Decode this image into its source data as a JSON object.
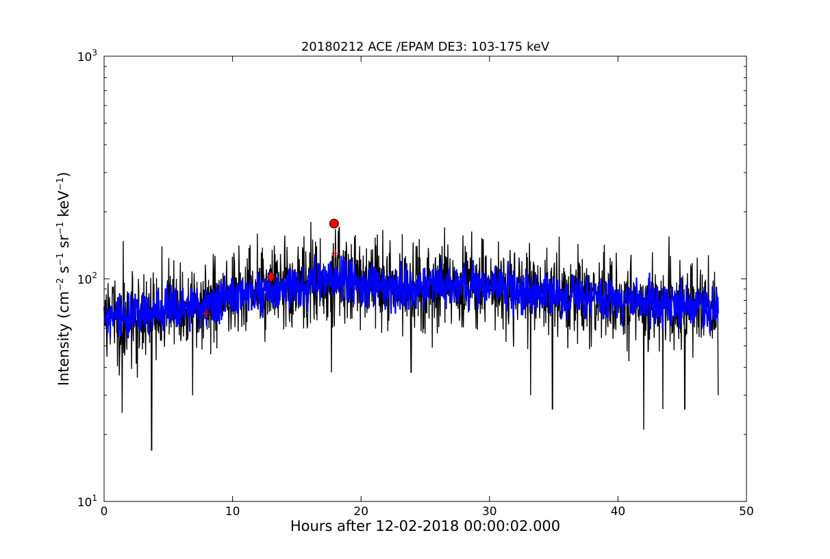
{
  "chart_data": {
    "type": "line",
    "title": "20180212 ACE /EPAM DE3: 103-175 keV",
    "xlabel": "Hours after 12-02-2018 00:00:02.000",
    "ylabel": {
      "prefix": "Intensity (cm",
      "exp1": "−2",
      "s": " s",
      "exp2": "−1",
      "sr": " sr",
      "exp3": "−1",
      "kev": " keV",
      "exp4": "−1",
      "suffix": ")"
    },
    "xlim": [
      0,
      50
    ],
    "ylim": [
      10,
      1000
    ],
    "yscale": "log",
    "grid": false,
    "x_ticks": [
      0,
      10,
      20,
      30,
      40,
      50
    ],
    "x_tick_labels": [
      "0",
      "10",
      "20",
      "30",
      "40",
      "50"
    ],
    "y_ticks": [
      10,
      100,
      1000
    ],
    "y_tick_label": {
      "base": "10",
      "exponents": [
        "1",
        "2",
        "3"
      ]
    },
    "sampling": {
      "x_start": 0.0,
      "x_end": 47.8,
      "points": 1700
    },
    "series": [
      {
        "color": "#000000",
        "style": "noisy-line",
        "envelope_x": [
          0,
          2,
          4,
          6,
          8,
          10,
          12,
          14,
          16,
          18,
          20,
          22,
          24,
          26,
          28,
          30,
          32,
          34,
          36,
          38,
          40,
          42,
          44,
          46,
          47.8
        ],
        "envelope_y": [
          65,
          68,
          72,
          74,
          78,
          84,
          88,
          92,
          96,
          98,
          96,
          92,
          90,
          92,
          95,
          92,
          88,
          86,
          84,
          82,
          80,
          78,
          77,
          76,
          76
        ],
        "spread": 0.22,
        "dips": [
          [
            1.4,
            25
          ],
          [
            3.7,
            17
          ],
          [
            6.9,
            30
          ],
          [
            17.7,
            38
          ],
          [
            23.9,
            38
          ],
          [
            33.2,
            30
          ],
          [
            34.9,
            26
          ],
          [
            42.0,
            21
          ],
          [
            43.5,
            26
          ],
          [
            45.2,
            26
          ],
          [
            47.8,
            30
          ]
        ],
        "spikes": [
          [
            1.5,
            148
          ],
          [
            4.5,
            140
          ],
          [
            16.1,
            180
          ],
          [
            18.3,
            170
          ],
          [
            26.5,
            170
          ],
          [
            29.5,
            150
          ]
        ]
      },
      {
        "color": "#0000ff",
        "style": "smoothed-line",
        "envelope_x": [
          0,
          2,
          4,
          6,
          8,
          10,
          12,
          14,
          16,
          18,
          20,
          22,
          24,
          26,
          28,
          30,
          32,
          34,
          36,
          38,
          40,
          42,
          44,
          46,
          47.8
        ],
        "envelope_y": [
          65,
          68,
          72,
          74,
          78,
          84,
          88,
          92,
          96,
          98,
          96,
          92,
          90,
          92,
          95,
          92,
          88,
          86,
          84,
          82,
          80,
          78,
          77,
          76,
          76
        ],
        "spread": 0.11
      }
    ],
    "markers": [
      {
        "shape": "plus",
        "x": 8.0,
        "y": 70,
        "color": "#ff0000"
      },
      {
        "shape": "diamond",
        "x": 13.0,
        "y": 102,
        "color": "#ff0000"
      },
      {
        "shape": "plus",
        "x": 18.0,
        "y": 130,
        "color": "#ff0000"
      },
      {
        "shape": "circle",
        "x": 17.9,
        "y": 177,
        "color": "#ff0000"
      }
    ]
  }
}
